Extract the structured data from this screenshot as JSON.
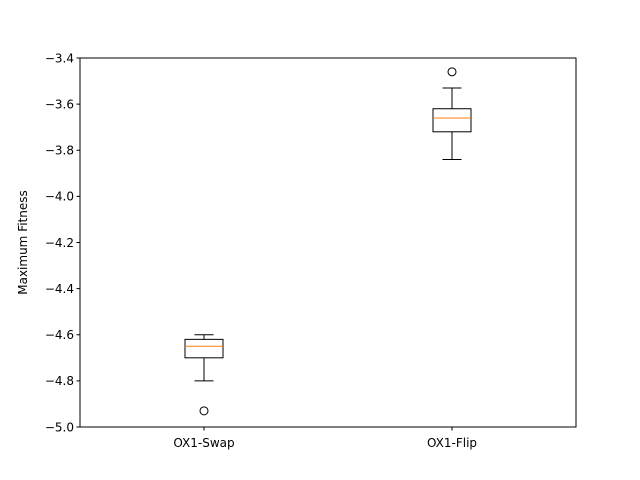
{
  "chart_data": {
    "type": "box",
    "ylabel": "Maximum Fitness",
    "xlabel": "",
    "title": "",
    "ylim": [
      -5.0,
      -3.4
    ],
    "yticks": [
      -5.0,
      -4.8,
      -4.6,
      -4.4,
      -4.2,
      -4.0,
      -3.8,
      -3.6,
      -3.4
    ],
    "ytick_labels": [
      "−5.0",
      "−4.8",
      "−4.6",
      "−4.4",
      "−4.2",
      "−4.0",
      "−3.8",
      "−3.6",
      "−3.4"
    ],
    "categories": [
      "OX1-Swap",
      "OX1-Flip"
    ],
    "boxes": [
      {
        "name": "OX1-Swap",
        "whisker_low": -4.8,
        "q1": -4.7,
        "median": -4.65,
        "q3": -4.62,
        "whisker_high": -4.6,
        "outliers": [
          -4.93
        ]
      },
      {
        "name": "OX1-Flip",
        "whisker_low": -3.84,
        "q1": -3.72,
        "median": -3.66,
        "q3": -3.62,
        "whisker_high": -3.53,
        "outliers": [
          -3.46
        ]
      }
    ],
    "grid": false,
    "colors": {
      "box": "#000000",
      "median": "#ff7f0e",
      "outlier": "#000000"
    }
  }
}
